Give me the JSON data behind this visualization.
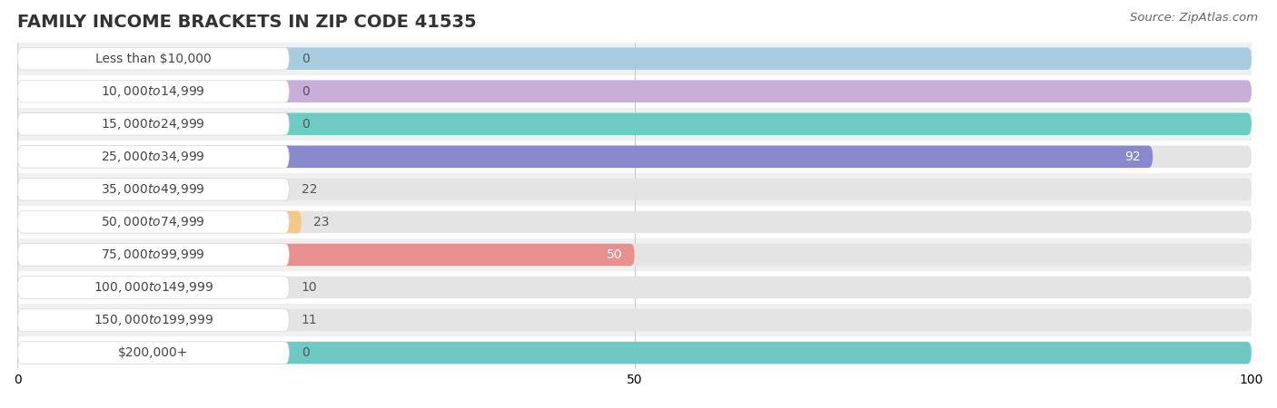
{
  "title": "FAMILY INCOME BRACKETS IN ZIP CODE 41535",
  "source": "Source: ZipAtlas.com",
  "categories": [
    "Less than $10,000",
    "$10,000 to $14,999",
    "$15,000 to $24,999",
    "$25,000 to $34,999",
    "$35,000 to $49,999",
    "$50,000 to $74,999",
    "$75,000 to $99,999",
    "$100,000 to $149,999",
    "$150,000 to $199,999",
    "$200,000+"
  ],
  "values": [
    0,
    0,
    0,
    92,
    22,
    23,
    50,
    10,
    11,
    0
  ],
  "bar_colors": [
    "#a8cde0",
    "#c8aed8",
    "#6eccc4",
    "#8888cc",
    "#f4a0b8",
    "#f5c888",
    "#e89090",
    "#90bce0",
    "#c0a8d8",
    "#70c8c4"
  ],
  "background_color": "#f7f7f7",
  "bar_bg_color": "#e4e4e4",
  "bar_row_bg": "#eeeeee",
  "xlim": [
    0,
    100
  ],
  "xticks": [
    0,
    50,
    100
  ],
  "title_fontsize": 14,
  "label_fontsize": 10,
  "value_fontsize": 10,
  "source_fontsize": 9.5
}
